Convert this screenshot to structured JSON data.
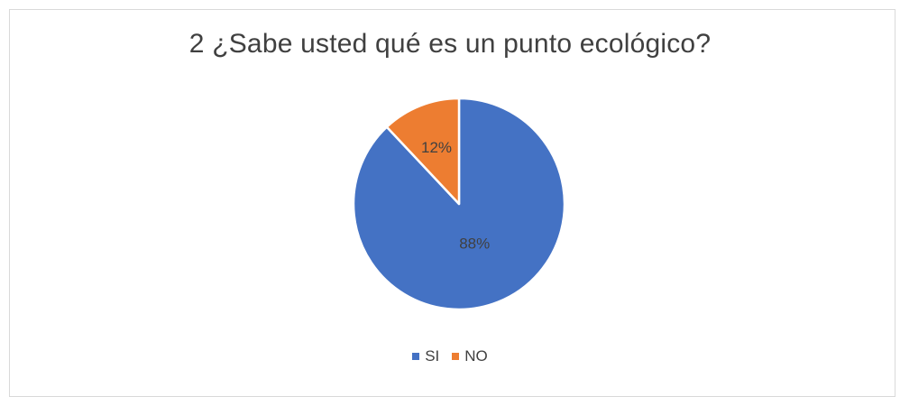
{
  "chart_data": {
    "type": "pie",
    "title": "2 ¿Sabe usted qué es un punto ecológico?",
    "categories": [
      "SI",
      "NO"
    ],
    "values": [
      88,
      12
    ],
    "data_labels": [
      "88%",
      "12%"
    ],
    "colors": [
      "#4472c4",
      "#ed7d31"
    ],
    "legend_position": "bottom"
  }
}
